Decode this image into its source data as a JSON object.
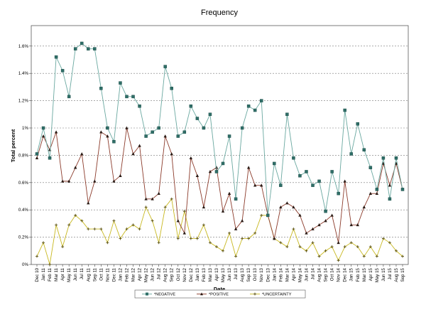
{
  "chart_data": {
    "type": "line",
    "title": "Frequency",
    "xlabel": "Date",
    "ylabel": "Total percent",
    "ylim": [
      0,
      1.75
    ],
    "yticks": [
      "0%",
      "0.2%",
      "0.4%",
      "0.6%",
      "0.8%",
      "1%",
      "1.2%",
      "1.4%",
      "1.6%"
    ],
    "grid": "horizontal dashed",
    "legend_position": "bottom",
    "categories": [
      "Dec 10",
      "Jan 11",
      "Feb 11",
      "Mar 11",
      "Apr 11",
      "May 11",
      "Jun 11",
      "Jul 11",
      "Aug 11",
      "Sep 11",
      "Oct 11",
      "Nov 11",
      "Dec 11",
      "Jan 12",
      "Feb 12",
      "Mar 12",
      "Apr 12",
      "May 12",
      "Jun 12",
      "Jul 12",
      "Aug 12",
      "Sep 12",
      "Oct 12",
      "Nov 12",
      "Dec 12",
      "Jan 13",
      "Feb 13",
      "Mar 13",
      "Apr 13",
      "May 13",
      "Jun 13",
      "Jul 13",
      "Aug 13",
      "Sep 13",
      "Oct 13",
      "Nov 13",
      "Dec 13",
      "Jan 14",
      "Feb 14",
      "Mar 14",
      "Apr 14",
      "May 14",
      "Jun 14",
      "Jul 14",
      "Aug 14",
      "Sep 14",
      "Oct 14",
      "Nov 14",
      "Dec 14",
      "Jan 15",
      "Feb 15",
      "Mar 15",
      "Apr 15",
      "May 15",
      "Jun 15",
      "Jul 15",
      "Aug 15",
      "Sep 15"
    ],
    "x_tick_labels": [
      "Dec 10",
      "Jan 11",
      "Feb 11",
      "Mar 11",
      "Apr 11",
      "May 11",
      "Jun 11",
      "Jul 11",
      "Aug 11",
      "Sep 11",
      "Oct 11",
      "Nov 11",
      "Dec 11",
      "Jan 12",
      "Feb 12",
      "Mar 12",
      "Apr 12",
      "May 12",
      "Jun 12",
      "Jul 12",
      "Aug 12",
      "Sep 12",
      "Oct 12",
      "Nov 12",
      "Dec 12",
      "Jan 13",
      "Feb 13",
      "Mar 13",
      "Apr 13",
      "May 13",
      "Jun 13",
      "Jul 13",
      "Aug 13",
      "Sep 13",
      "Oct 13",
      "Nov 13",
      "Dec 13",
      "Jan 14",
      "Feb 14",
      "Mar 14",
      "Apr 14",
      "May 14",
      "Jun 14",
      "Jul 14",
      "Aug 14",
      "Sep 14",
      "Oct 14",
      "Nov 14",
      "Dec 14",
      "Jan 15",
      "Feb 15",
      "Mar 15",
      "Apr 15",
      "May 15",
      "Jun 15",
      "Jul 15",
      "Aug 15",
      "Sep 15"
    ],
    "series": [
      {
        "name": "*NEGATIVE",
        "color": "#6aa8a0",
        "marker": "square",
        "values": [
          0.81,
          1.0,
          0.78,
          1.52,
          1.42,
          1.23,
          1.58,
          1.62,
          1.58,
          1.58,
          1.29,
          1.0,
          0.9,
          1.33,
          1.23,
          1.23,
          1.16,
          0.94,
          0.97,
          1.0,
          1.45,
          1.29,
          0.94,
          0.97,
          1.16,
          1.07,
          1.0,
          1.1,
          0.68,
          0.74,
          0.94,
          0.48,
          1.0,
          1.16,
          1.13,
          1.2,
          0.36,
          0.74,
          0.58,
          1.1,
          0.78,
          0.65,
          0.68,
          0.58,
          0.61,
          0.39,
          0.68,
          0.52,
          1.13,
          0.81,
          1.03,
          0.84,
          0.71,
          0.55,
          0.78,
          0.48,
          0.78,
          0.55
        ]
      },
      {
        "name": "*POSITIVE",
        "color": "#8b3a2a",
        "marker": "triangle",
        "values": [
          0.78,
          0.94,
          0.84,
          0.97,
          0.61,
          0.61,
          0.71,
          0.81,
          0.45,
          0.61,
          0.97,
          0.94,
          0.61,
          0.65,
          1.0,
          0.81,
          0.87,
          0.48,
          0.48,
          0.52,
          0.94,
          0.81,
          0.32,
          0.23,
          0.78,
          0.65,
          0.42,
          0.68,
          0.71,
          0.39,
          0.52,
          0.26,
          0.32,
          0.71,
          0.58,
          0.58,
          0.36,
          0.19,
          0.42,
          0.45,
          0.42,
          0.36,
          0.23,
          0.26,
          0.29,
          0.32,
          0.36,
          0.16,
          0.61,
          0.29,
          0.29,
          0.42,
          0.52,
          0.52,
          0.74,
          0.58,
          0.74,
          0.55
        ]
      },
      {
        "name": "*UNCERTAINTY",
        "color": "#c8b820",
        "marker": "plus",
        "values": [
          0.06,
          0.16,
          0.0,
          0.29,
          0.13,
          0.29,
          0.36,
          0.32,
          0.26,
          0.26,
          0.26,
          0.16,
          0.32,
          0.19,
          0.26,
          0.29,
          0.26,
          0.42,
          0.32,
          0.16,
          0.42,
          0.48,
          0.19,
          0.39,
          0.19,
          0.19,
          0.29,
          0.16,
          0.13,
          0.1,
          0.23,
          0.06,
          0.19,
          0.19,
          0.23,
          0.36,
          0.36,
          0.19,
          0.16,
          0.13,
          0.26,
          0.13,
          0.1,
          0.16,
          0.06,
          0.1,
          0.13,
          0.03,
          0.13,
          0.16,
          0.13,
          0.06,
          0.13,
          0.06,
          0.19,
          0.16,
          0.1,
          0.06
        ]
      }
    ]
  }
}
